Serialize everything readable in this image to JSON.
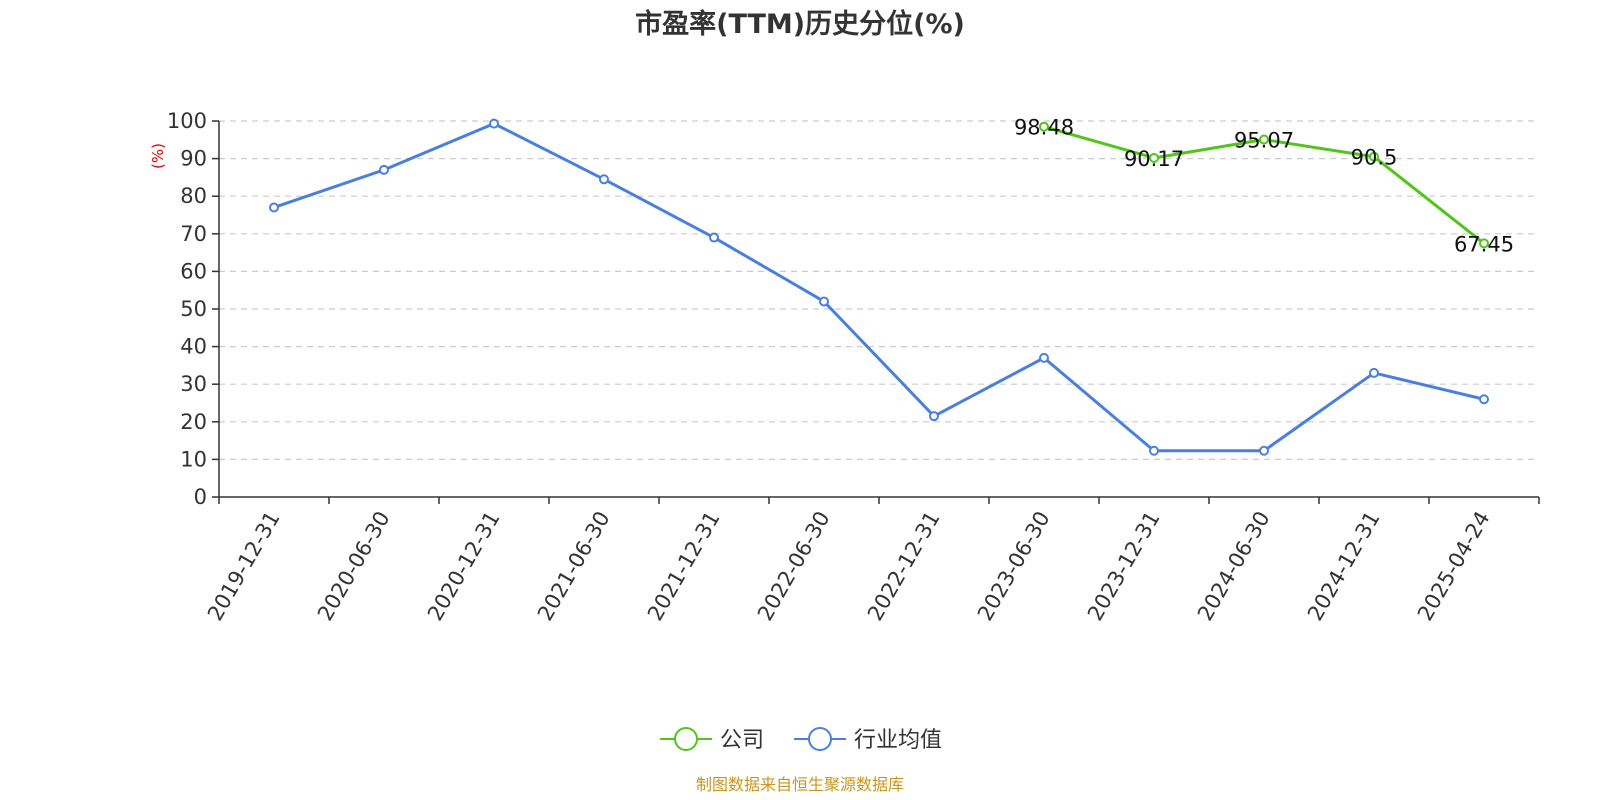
{
  "chart_data": {
    "type": "line",
    "title": "市盈率(TTM)历史分位(%)",
    "ylabel": "(%)",
    "xlabel": "",
    "ylim": [
      0,
      100
    ],
    "yticks": [
      0,
      10,
      20,
      30,
      40,
      50,
      60,
      70,
      80,
      90,
      100
    ],
    "categories": [
      "2019-12-31",
      "2020-06-30",
      "2020-12-31",
      "2021-06-30",
      "2021-12-31",
      "2022-06-30",
      "2022-12-31",
      "2023-06-30",
      "2023-12-31",
      "2024-06-30",
      "2024-12-31",
      "2025-04-24"
    ],
    "grid": true,
    "legend_position": "bottom-center",
    "series": [
      {
        "name": "公司",
        "color": "#52c41a",
        "show_labels": true,
        "values": [
          null,
          null,
          null,
          null,
          null,
          null,
          null,
          98.48,
          90.17,
          95.07,
          90.5,
          67.45
        ],
        "labels": [
          "",
          "",
          "",
          "",
          "",
          "",
          "",
          "98.48",
          "90.17",
          "95.07",
          "90.5",
          "67.45"
        ]
      },
      {
        "name": "行业均值",
        "color": "#4a7fde",
        "show_labels": false,
        "values": [
          77,
          87,
          99.3,
          84.5,
          69,
          52,
          21.5,
          37,
          12.3,
          12.3,
          33,
          26
        ]
      }
    ],
    "source": "制图数据来自恒生聚源数据库"
  }
}
